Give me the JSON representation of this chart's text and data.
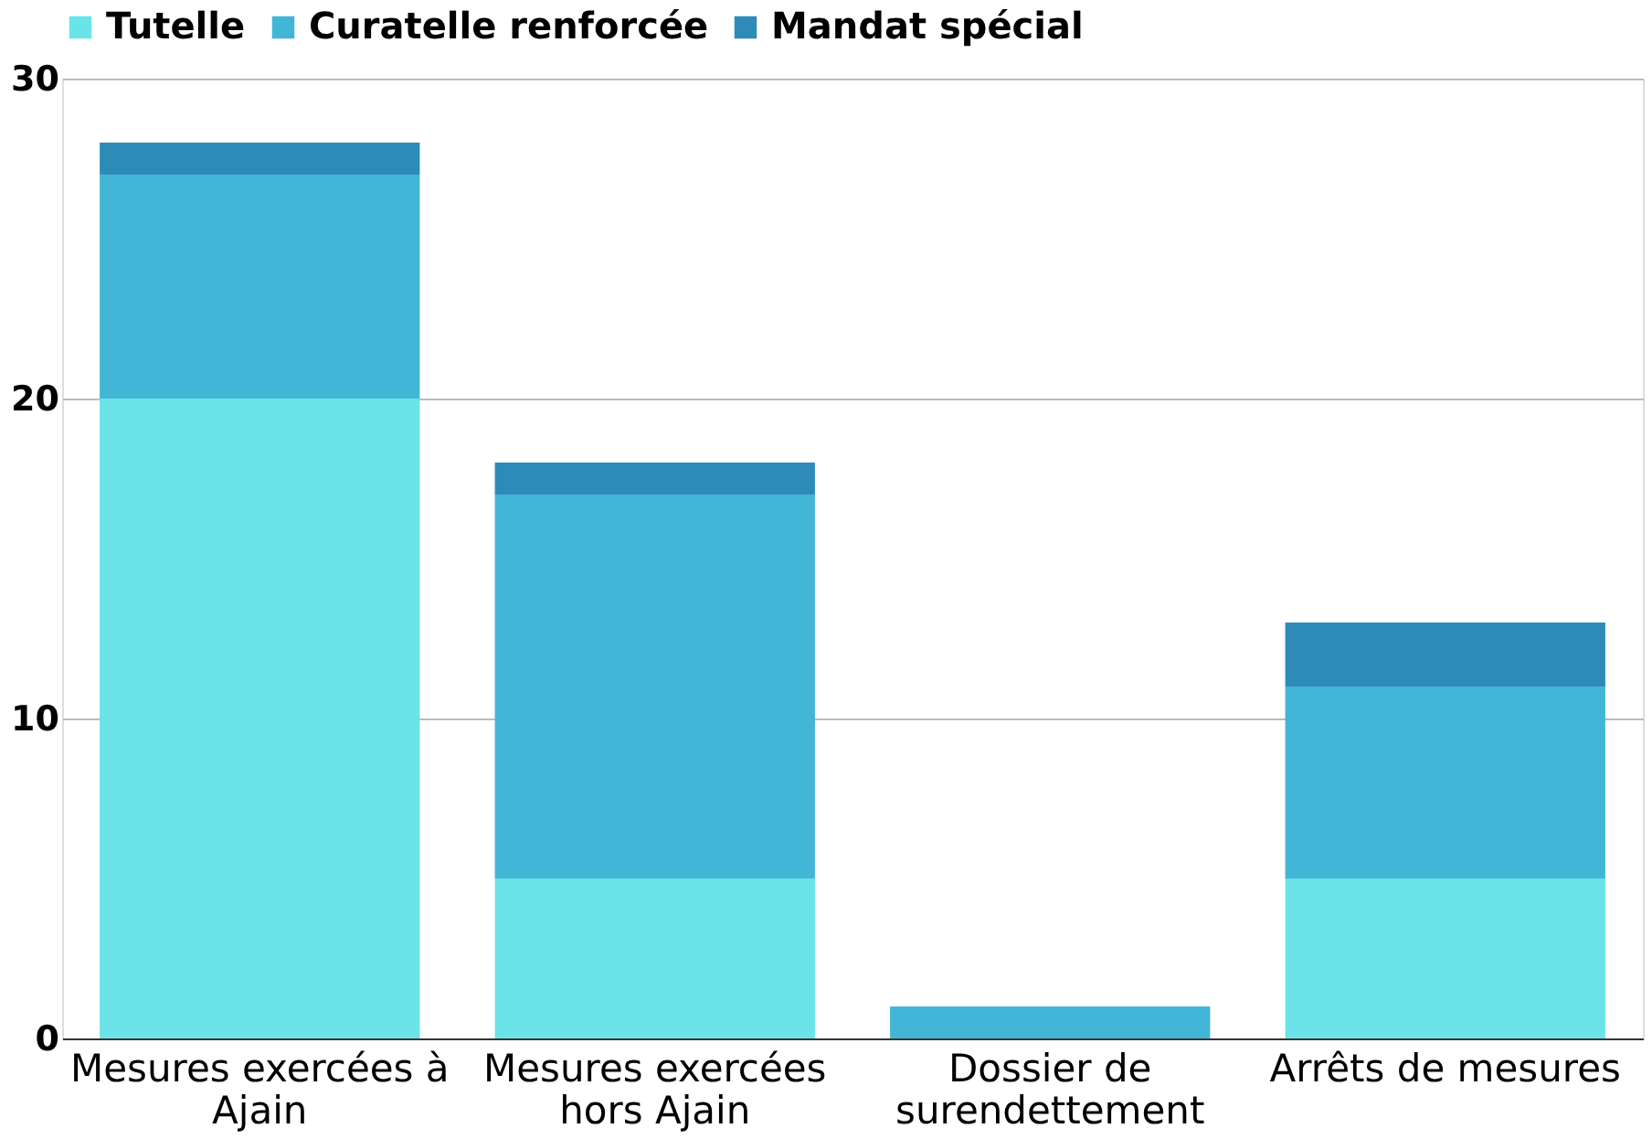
{
  "chart_data": {
    "type": "bar",
    "stacked": true,
    "categories": [
      "Mesures exercées à Ajain",
      "Mesures exercées hors Ajain",
      "Dossier de surendettement",
      "Arrêts de mesures"
    ],
    "series": [
      {
        "name": "Tutelle",
        "color": "#6ae4e8",
        "values": [
          20,
          5,
          0,
          5
        ]
      },
      {
        "name": "Curatelle renforcée",
        "color": "#42b6d6",
        "values": [
          7,
          12,
          1,
          6
        ]
      },
      {
        "name": "Mandat spécial",
        "color": "#2e8bb8",
        "values": [
          1,
          1,
          0,
          2
        ]
      }
    ],
    "ylim": [
      0,
      30
    ],
    "yticks": [
      0,
      10,
      20,
      30
    ],
    "grid": "y",
    "legend": "top"
  }
}
